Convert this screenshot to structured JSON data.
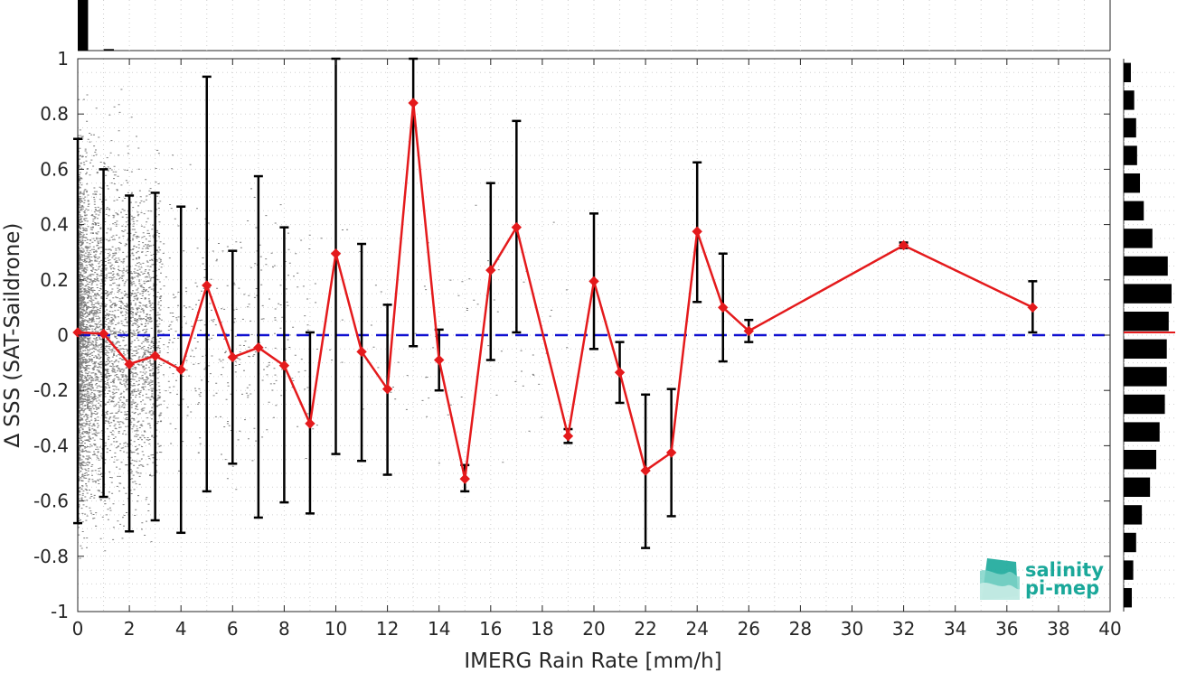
{
  "chart_data": {
    "type": "scatter",
    "xlabel": "IMERG Rain Rate [mm/h]",
    "ylabel": "∆ SSS (SAT-Saildrone)",
    "xlim": [
      0,
      40
    ],
    "ylim": [
      -1,
      1
    ],
    "x_ticks": [
      "0",
      "2",
      "4",
      "6",
      "8",
      "10",
      "12",
      "14",
      "16",
      "18",
      "20",
      "22",
      "24",
      "26",
      "28",
      "30",
      "32",
      "34",
      "36",
      "38",
      "40"
    ],
    "y_ticks": [
      "-1",
      "-0.8",
      "-0.6",
      "-0.4",
      "-0.2",
      "0",
      "0.2",
      "0.4",
      "0.6",
      "0.8",
      "1"
    ],
    "grid": true,
    "zero_line": {
      "y": 0,
      "style": "dashed",
      "color": "#1010d0"
    },
    "binned_mean": {
      "color": "#e41a1c",
      "x": [
        0,
        1,
        2,
        3,
        4,
        5,
        6,
        7,
        8,
        9,
        10,
        11,
        12,
        13,
        14,
        15,
        16,
        17,
        19,
        20,
        21,
        22,
        23,
        24,
        25,
        26,
        32,
        37
      ],
      "y": [
        0.01,
        0.005,
        -0.105,
        -0.075,
        -0.125,
        0.18,
        -0.08,
        -0.045,
        -0.11,
        -0.32,
        0.295,
        -0.06,
        -0.195,
        0.84,
        -0.09,
        -0.52,
        0.235,
        0.39,
        -0.365,
        0.195,
        -0.135,
        -0.49,
        -0.425,
        0.375,
        0.1,
        0.015,
        0.325,
        0.1
      ],
      "err_low": [
        -0.68,
        -0.585,
        -0.71,
        -0.67,
        -0.715,
        -0.565,
        -0.465,
        -0.66,
        -0.605,
        -0.645,
        -0.43,
        -0.455,
        -0.505,
        -0.04,
        -0.2,
        -0.565,
        -0.09,
        0.01,
        -0.39,
        -0.05,
        -0.245,
        -0.77,
        -0.655,
        0.12,
        -0.095,
        -0.025,
        0.315,
        0.01
      ],
      "err_high": [
        0.71,
        0.6,
        0.505,
        0.515,
        0.465,
        0.935,
        0.305,
        0.575,
        0.39,
        0.01,
        1.0,
        0.33,
        0.11,
        1.0,
        0.02,
        -0.47,
        0.55,
        0.775,
        -0.34,
        0.44,
        -0.025,
        -0.215,
        -0.195,
        0.625,
        0.295,
        0.055,
        0.335,
        0.195
      ]
    },
    "scatter_cloud": {
      "color": "#7f7f7f",
      "description_visible": false
    },
    "top_histogram": {
      "bin_edges": [
        0,
        1,
        2
      ],
      "relative_heights": [
        1.0,
        0.03
      ]
    },
    "right_histogram": {
      "bins_y": [
        0.95,
        0.85,
        0.75,
        0.65,
        0.55,
        0.45,
        0.35,
        0.25,
        0.15,
        0.05,
        -0.05,
        -0.15,
        -0.25,
        -0.35,
        -0.45,
        -0.55,
        -0.65,
        -0.75,
        -0.85,
        -0.95
      ],
      "relative_widths": [
        0.15,
        0.22,
        0.26,
        0.28,
        0.34,
        0.42,
        0.6,
        0.92,
        1.0,
        0.94,
        0.9,
        0.9,
        0.86,
        0.75,
        0.68,
        0.55,
        0.38,
        0.26,
        0.2,
        0.17
      ],
      "median_line": {
        "y": 0.01,
        "color": "#e41a1c"
      }
    }
  },
  "logo": {
    "line1": "salinity",
    "line2": "pi-mep",
    "color": "#1aa89a"
  }
}
